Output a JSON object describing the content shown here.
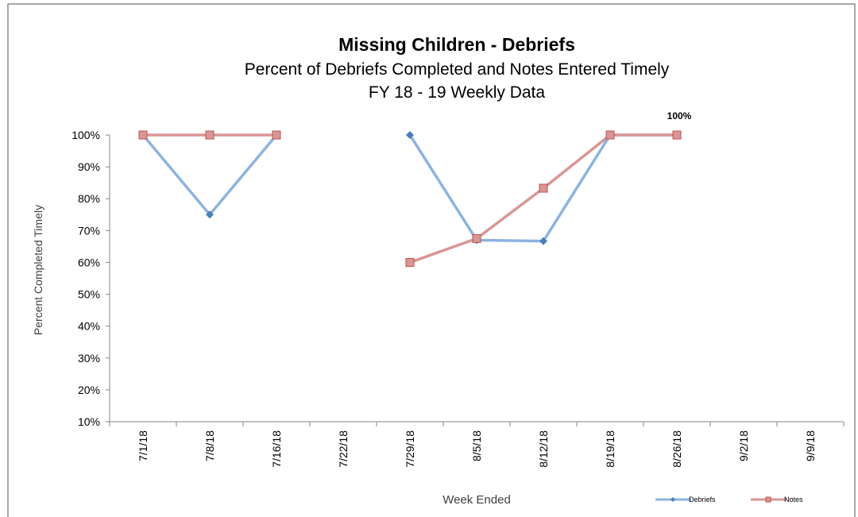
{
  "chart_data": {
    "type": "line",
    "title": "Missing Children - Debriefs",
    "subtitle": [
      "Percent of Debriefs Completed and Notes Entered Timely",
      "FY 18 - 19  Weekly Data"
    ],
    "x_label": "Week Ended",
    "y_label": "Percent Completed Timely",
    "categories": [
      "7/1/18",
      "7/8/18",
      "7/16/18",
      "7/22/18",
      "7/29/18",
      "8/5/18",
      "8/12/18",
      "8/19/18",
      "8/26/18",
      "9/2/18",
      "9/9/18"
    ],
    "series": [
      {
        "name": "Debriefs",
        "color": "#8db3e2",
        "marker_color": "#4a7ebb",
        "marker": "diamond",
        "values": [
          100,
          75,
          100,
          null,
          100,
          67,
          66.7,
          100,
          100,
          null,
          null
        ]
      },
      {
        "name": "Notes",
        "color": "#d99694",
        "marker_color": "#c0504d",
        "marker": "square",
        "values": [
          100,
          100,
          100,
          null,
          60,
          67.5,
          83.3,
          100,
          100,
          null,
          null
        ],
        "value_labels": [
          null,
          null,
          null,
          null,
          null,
          null,
          null,
          null,
          "100%",
          null,
          null
        ]
      }
    ],
    "ylim": [
      10,
      100
    ],
    "yticks": [
      {
        "value": 10,
        "label": "10%"
      },
      {
        "value": 20,
        "label": "20%"
      },
      {
        "value": 30,
        "label": "30%"
      },
      {
        "value": 40,
        "label": "40%"
      },
      {
        "value": 50,
        "label": "50%"
      },
      {
        "value": 60,
        "label": "60%"
      },
      {
        "value": 70,
        "label": "70%"
      },
      {
        "value": 80,
        "label": "80%"
      },
      {
        "value": 90,
        "label": "90%"
      },
      {
        "value": 100,
        "label": "100%"
      }
    ],
    "legend": "bottom-right"
  }
}
